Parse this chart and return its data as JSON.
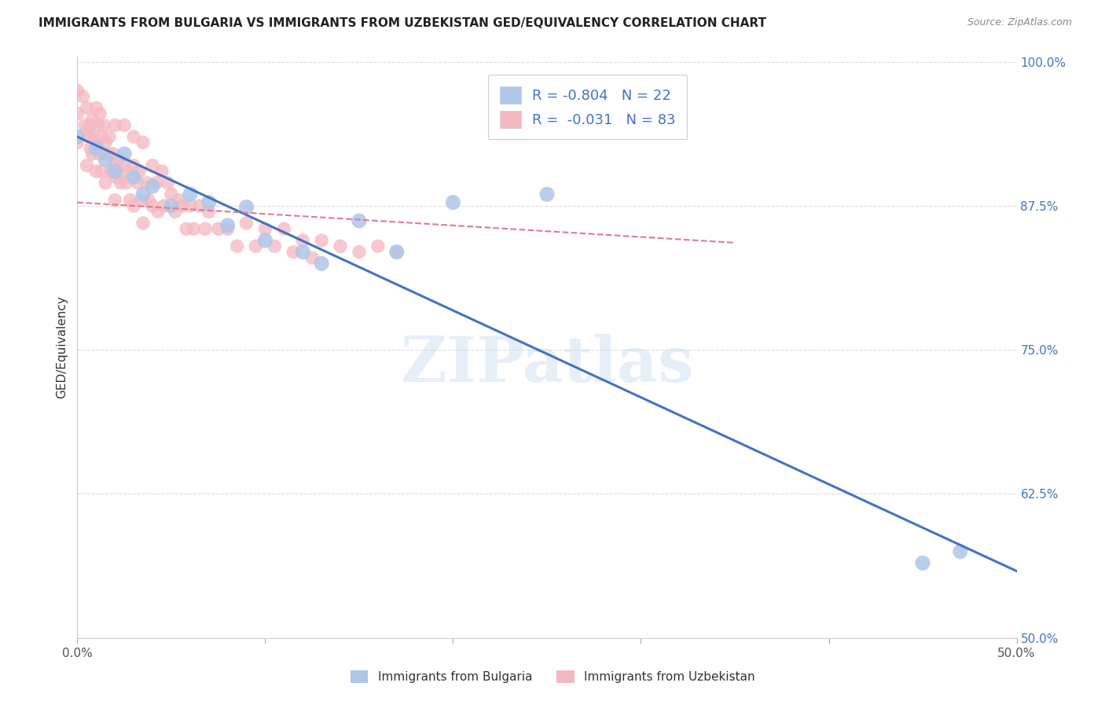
{
  "title": "IMMIGRANTS FROM BULGARIA VS IMMIGRANTS FROM UZBEKISTAN GED/EQUIVALENCY CORRELATION CHART",
  "source": "Source: ZipAtlas.com",
  "ylabel": "GED/Equivalency",
  "xlim": [
    0.0,
    0.5
  ],
  "ylim": [
    0.5,
    1.005
  ],
  "yticks": [
    0.5,
    0.625,
    0.75,
    0.875,
    1.0
  ],
  "yticklabels": [
    "50.0%",
    "62.5%",
    "75.0%",
    "87.5%",
    "100.0%"
  ],
  "xticks": [
    0.0,
    0.1,
    0.2,
    0.3,
    0.4,
    0.5
  ],
  "xticklabels": [
    "0.0%",
    "",
    "",
    "",
    "",
    "50.0%"
  ],
  "ytick_color": "#4472c4",
  "bulgaria_color": "#aec6e8",
  "uzbekistan_color": "#f4b8c1",
  "bulgaria_line_color": "#4472c4",
  "uzbekistan_line_color": "#e07b8a",
  "R_bulgaria": -0.804,
  "N_bulgaria": 22,
  "R_uzbekistan": -0.031,
  "N_uzbekistan": 83,
  "legend_label_bulgaria": "Immigrants from Bulgaria",
  "legend_label_uzbekistan": "Immigrants from Uzbekistan",
  "watermark": "ZIPatlas",
  "background_color": "#ffffff",
  "grid_color": "#dddddd",
  "bulgaria_line_x0": 0.0,
  "bulgaria_line_y0": 0.935,
  "bulgaria_line_x1": 0.5,
  "bulgaria_line_y1": 0.558,
  "uzbekistan_line_x0": 0.0,
  "uzbekistan_line_y0": 0.878,
  "uzbekistan_line_x1": 0.35,
  "uzbekistan_line_y1": 0.843,
  "bulgaria_scatter_x": [
    0.0,
    0.01,
    0.015,
    0.02,
    0.025,
    0.03,
    0.035,
    0.04,
    0.05,
    0.06,
    0.07,
    0.08,
    0.09,
    0.1,
    0.12,
    0.13,
    0.15,
    0.17,
    0.2,
    0.25,
    0.45,
    0.47
  ],
  "bulgaria_scatter_y": [
    0.935,
    0.925,
    0.915,
    0.905,
    0.92,
    0.9,
    0.885,
    0.892,
    0.875,
    0.885,
    0.878,
    0.858,
    0.874,
    0.845,
    0.835,
    0.825,
    0.862,
    0.835,
    0.878,
    0.885,
    0.565,
    0.575
  ],
  "uzbekistan_scatter_x": [
    0.0,
    0.0,
    0.0,
    0.003,
    0.004,
    0.005,
    0.005,
    0.005,
    0.006,
    0.007,
    0.007,
    0.008,
    0.008,
    0.009,
    0.01,
    0.01,
    0.01,
    0.011,
    0.012,
    0.012,
    0.013,
    0.013,
    0.014,
    0.015,
    0.015,
    0.016,
    0.017,
    0.018,
    0.019,
    0.02,
    0.02,
    0.02,
    0.021,
    0.022,
    0.023,
    0.025,
    0.025,
    0.026,
    0.027,
    0.028,
    0.03,
    0.03,
    0.03,
    0.032,
    0.033,
    0.034,
    0.035,
    0.035,
    0.037,
    0.038,
    0.04,
    0.04,
    0.042,
    0.043,
    0.045,
    0.046,
    0.048,
    0.05,
    0.052,
    0.054,
    0.056,
    0.058,
    0.06,
    0.062,
    0.065,
    0.068,
    0.07,
    0.075,
    0.08,
    0.085,
    0.09,
    0.095,
    0.1,
    0.105,
    0.11,
    0.115,
    0.12,
    0.125,
    0.13,
    0.14,
    0.15,
    0.16,
    0.17
  ],
  "uzbekistan_scatter_y": [
    0.975,
    0.955,
    0.93,
    0.97,
    0.945,
    0.96,
    0.94,
    0.91,
    0.935,
    0.945,
    0.925,
    0.95,
    0.92,
    0.935,
    0.96,
    0.93,
    0.905,
    0.945,
    0.955,
    0.92,
    0.935,
    0.905,
    0.945,
    0.93,
    0.895,
    0.92,
    0.935,
    0.905,
    0.92,
    0.945,
    0.91,
    0.88,
    0.9,
    0.915,
    0.895,
    0.945,
    0.91,
    0.895,
    0.905,
    0.88,
    0.935,
    0.91,
    0.875,
    0.895,
    0.905,
    0.88,
    0.93,
    0.86,
    0.895,
    0.88,
    0.91,
    0.875,
    0.895,
    0.87,
    0.905,
    0.875,
    0.895,
    0.885,
    0.87,
    0.88,
    0.875,
    0.855,
    0.875,
    0.855,
    0.875,
    0.855,
    0.87,
    0.855,
    0.855,
    0.84,
    0.86,
    0.84,
    0.855,
    0.84,
    0.855,
    0.835,
    0.845,
    0.83,
    0.845,
    0.84,
    0.835,
    0.84,
    0.835
  ]
}
